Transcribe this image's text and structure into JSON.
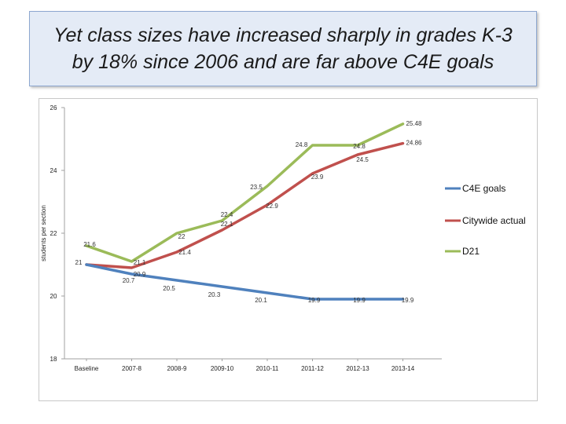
{
  "slide": {
    "title": "Yet class sizes have increased sharply in grades K-3\nby 18% since 2006 and are far above C4E goals"
  },
  "chart_data": {
    "type": "line",
    "title": "",
    "xlabel": "",
    "ylabel": "students per section",
    "ylim": [
      18,
      26
    ],
    "yticks": [
      18,
      20,
      22,
      24,
      26
    ],
    "grid": false,
    "legend_position": "right",
    "categories": [
      "Baseline",
      "2007-8",
      "2008-9",
      "2009-10",
      "2010-11",
      "2011-12",
      "2012-13",
      "2013-14"
    ],
    "series": [
      {
        "name": "C4E goals",
        "color": "#4f81bd",
        "values": [
          21,
          20.7,
          20.5,
          20.3,
          20.1,
          19.9,
          19.9,
          19.9
        ],
        "labels": [
          "21",
          "20.7",
          "20.5",
          "20.3",
          "20.1",
          "19.9",
          "19.9",
          "19.9"
        ]
      },
      {
        "name": "Citywide actual",
        "color": "#c0504d",
        "values": [
          21,
          20.9,
          21.4,
          22.1,
          22.9,
          23.9,
          24.5,
          24.86
        ],
        "labels": [
          "",
          "20.9",
          "21.4",
          "22.1",
          "22.9",
          "23.9",
          "24.5",
          "24.86"
        ]
      },
      {
        "name": "D21",
        "color": "#9bbb59",
        "values": [
          21.6,
          21.1,
          22,
          22.4,
          23.5,
          24.8,
          24.8,
          25.48
        ],
        "labels": [
          "21.6",
          "21.1",
          "22",
          "22.4",
          "23.5",
          "24.8",
          "24.8",
          "25.48"
        ]
      }
    ]
  }
}
